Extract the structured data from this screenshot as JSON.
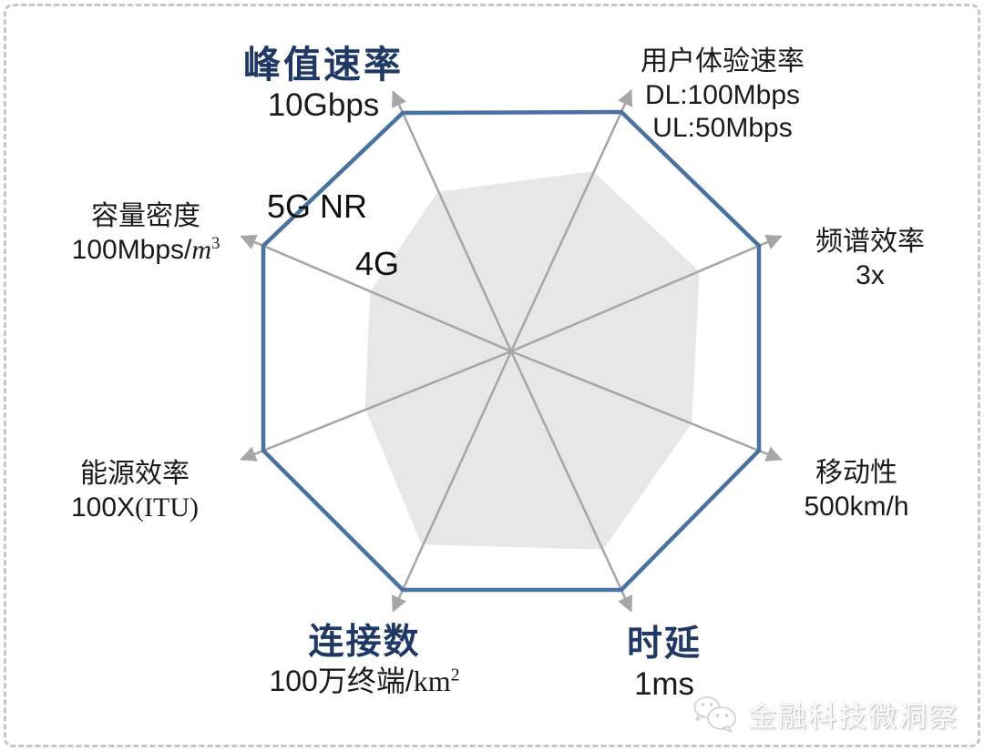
{
  "chart_data": {
    "type": "radar",
    "title": "",
    "categories": [
      "峰值速率",
      "用户体验速率",
      "频谱效率",
      "移动性",
      "时延",
      "连接数",
      "能源效率",
      "容量密度"
    ],
    "category_values": [
      "10Gbps",
      "DL:100Mbps UL:50Mbps",
      "3x",
      "500km/h",
      "1ms",
      "100万终端/km²",
      "100X(ITU)",
      "100Mbps/m³"
    ],
    "series": [
      {
        "name": "5G NR",
        "style": "outline",
        "values": [
          1,
          1,
          1,
          1,
          1,
          1,
          1,
          1
        ]
      },
      {
        "name": "4G",
        "style": "filled",
        "values": [
          0.64,
          0.72,
          0.73,
          0.7,
          0.8,
          0.78,
          0.56,
          0.54
        ]
      }
    ],
    "scale_note": "values are radius fractions; 5G NR octagon outline = 1.0",
    "axes_style": "gray arrows radiating from center",
    "legend_position": "inline labels upper-left of center"
  },
  "colors": {
    "outline_series": "#4a72a0",
    "fill_series": "#e7e7e7",
    "axis": "#a6a6a6",
    "title_emphasis": "#1f3864",
    "text": "#1a1a1a"
  },
  "axis_labels": {
    "peak": {
      "title": "峰值速率",
      "value": "10Gbps"
    },
    "ux": {
      "title": "用户体验速率",
      "line1": "DL:100Mbps",
      "line2": "UL:50Mbps"
    },
    "spectrum": {
      "title": "频谱效率",
      "value": "3x"
    },
    "mobility": {
      "title": "移动性",
      "value": "500km/h"
    },
    "latency": {
      "title": "时延",
      "value": "1ms"
    },
    "connections": {
      "title": "连接数",
      "value_prefix": "100万终端/",
      "value_unit": "km",
      "value_sup": "2"
    },
    "energy": {
      "title": "能源效率",
      "value_prefix": "100X",
      "value_serif": "(ITU)"
    },
    "capacity": {
      "title": "容量密度",
      "value_prefix": "100Mbps/",
      "value_unit": "m",
      "value_sup": "3"
    }
  },
  "watermark": {
    "text": "金融科技微洞察",
    "icon": "wechat-icon"
  }
}
